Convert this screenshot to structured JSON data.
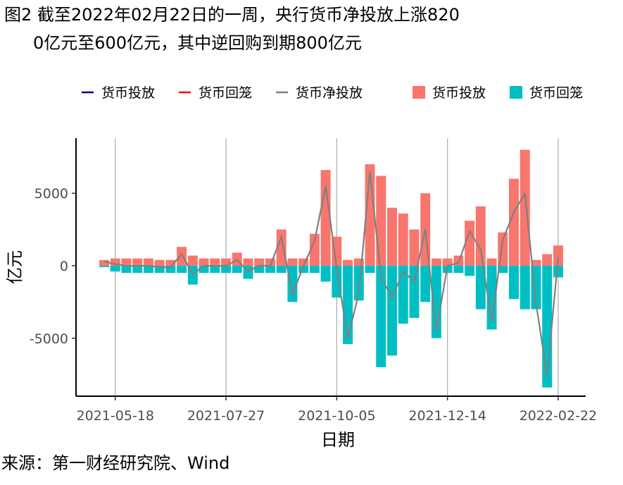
{
  "title": {
    "line1": "图2 截至2022年02月22日的一周，央行货币净投放上涨820",
    "line2": "0亿元至600亿元，其中逆回购到期800亿元"
  },
  "source": "来源：第一财经研究院、Wind",
  "chart_data": {
    "type": "bar",
    "xlabel": "日期",
    "ylabel": "亿元",
    "ylim": [
      -9000,
      8800
    ],
    "y_ticks": [
      5000,
      0,
      -5000
    ],
    "y_tick_labels": [
      "5000",
      "0",
      "-5000"
    ],
    "x_tick_labels": [
      "2021-05-18",
      "2021-07-27",
      "2021-10-05",
      "2021-12-14",
      "2022-02-22"
    ],
    "x_tick_index": [
      1,
      11,
      21,
      31,
      41
    ],
    "grid": "vertical major lines",
    "legend_position": "top",
    "legend": [
      {
        "label": "货币投放",
        "kind": "line",
        "color": "#00008B"
      },
      {
        "label": "货币回笼",
        "kind": "line",
        "color": "#FF0000"
      },
      {
        "label": "货币净投放",
        "kind": "line",
        "color": "#808080"
      },
      {
        "label": "货币投放",
        "kind": "bar",
        "color": "#F8766D"
      },
      {
        "label": "货币回笼",
        "kind": "bar",
        "color": "#00BFC4"
      }
    ],
    "categories": [
      "2021-05-11",
      "2021-05-18",
      "2021-05-25",
      "2021-06-01",
      "2021-06-08",
      "2021-06-15",
      "2021-06-22",
      "2021-06-29",
      "2021-07-06",
      "2021-07-13",
      "2021-07-20",
      "2021-07-27",
      "2021-08-03",
      "2021-08-10",
      "2021-08-17",
      "2021-08-24",
      "2021-08-31",
      "2021-09-07",
      "2021-09-14",
      "2021-09-21",
      "2021-09-28",
      "2021-10-05",
      "2021-10-12",
      "2021-10-19",
      "2021-10-26",
      "2021-11-02",
      "2021-11-09",
      "2021-11-16",
      "2021-11-23",
      "2021-11-30",
      "2021-12-07",
      "2021-12-14",
      "2021-12-21",
      "2021-12-28",
      "2022-01-04",
      "2022-01-11",
      "2022-01-18",
      "2022-01-25",
      "2022-02-01",
      "2022-02-08",
      "2022-02-15",
      "2022-02-22"
    ],
    "series": [
      {
        "name": "货币投放",
        "color": "#F8766D",
        "values": [
          400,
          500,
          500,
          500,
          500,
          400,
          400,
          1300,
          700,
          500,
          500,
          500,
          900,
          500,
          500,
          500,
          2500,
          500,
          500,
          2200,
          6600,
          2000,
          400,
          500,
          7000,
          6200,
          4000,
          3600,
          2500,
          5000,
          500,
          500,
          700,
          3100,
          4100,
          500,
          2300,
          6000,
          8000,
          400,
          800,
          1400
        ]
      },
      {
        "name": "货币回笼",
        "color": "#00BFC4",
        "values": [
          -100,
          -400,
          -500,
          -500,
          -500,
          -500,
          -500,
          -500,
          -1300,
          -500,
          -500,
          -500,
          -500,
          -900,
          -500,
          -500,
          -500,
          -2500,
          -500,
          -500,
          -1100,
          -2200,
          -5400,
          -2400,
          -500,
          -7000,
          -6200,
          -4000,
          -3600,
          -2500,
          -5000,
          -500,
          -500,
          -700,
          -3000,
          -4400,
          -500,
          -2300,
          -3000,
          -3000,
          -8400,
          -800
        ]
      },
      {
        "name": "货币净投放",
        "color": "#808080",
        "values": [
          300,
          100,
          0,
          0,
          0,
          -100,
          -100,
          800,
          -600,
          0,
          0,
          0,
          400,
          -400,
          0,
          0,
          2000,
          -2000,
          0,
          1700,
          5500,
          -200,
          -5000,
          -1900,
          6500,
          -800,
          -2200,
          -400,
          -1100,
          2500,
          -4500,
          0,
          200,
          2400,
          1100,
          -3900,
          1800,
          3700,
          5000,
          -2600,
          -7600,
          600
        ]
      }
    ]
  }
}
